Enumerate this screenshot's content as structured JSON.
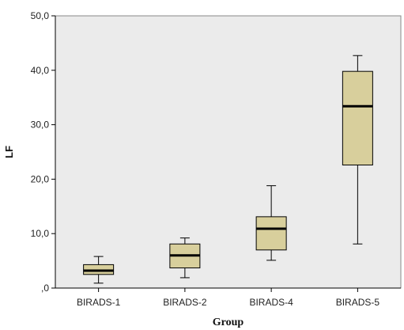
{
  "chart_data": {
    "type": "box",
    "title": "",
    "xlabel": "Group",
    "ylabel": "LF",
    "ylim": [
      0,
      50
    ],
    "yticks": [
      0,
      10,
      20,
      30,
      40,
      50
    ],
    "ytick_labels": [
      ",0",
      "10,0",
      "20,0",
      "30,0",
      "40,0",
      "50,0"
    ],
    "grid": false,
    "legend": "none",
    "categories": [
      "BIRADS-1",
      "BIRADS-2",
      "BIRADS-4",
      "BIRADS-5"
    ],
    "boxes": [
      {
        "category": "BIRADS-1",
        "min": 0.9,
        "q1": 2.5,
        "median": 3.2,
        "q3": 4.3,
        "max": 5.8
      },
      {
        "category": "BIRADS-2",
        "min": 1.9,
        "q1": 3.7,
        "median": 6.0,
        "q3": 8.1,
        "max": 9.2
      },
      {
        "category": "BIRADS-4",
        "min": 5.1,
        "q1": 7.0,
        "median": 10.9,
        "q3": 13.1,
        "max": 18.8
      },
      {
        "category": "BIRADS-5",
        "min": 8.1,
        "q1": 22.6,
        "median": 33.4,
        "q3": 39.8,
        "max": 42.7
      }
    ],
    "colors": {
      "plot_background": "#ebebeb",
      "box_fill": "#d8cf9c",
      "line": "#000000"
    }
  }
}
